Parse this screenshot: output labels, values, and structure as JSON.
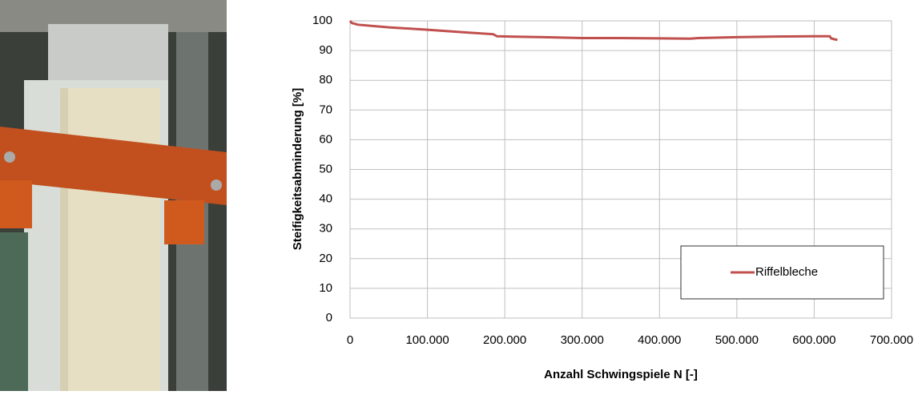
{
  "chart_data": {
    "type": "line",
    "x_label": "Anzahl Schwingspiele N [-]",
    "y_label": "Steifigkeitsabminderung [%]",
    "x": [
      0,
      2000,
      10000,
      50000,
      100000,
      150000,
      185000,
      190000,
      250000,
      300000,
      350000,
      400000,
      440000,
      450000,
      500000,
      550000,
      600000,
      620000,
      622000,
      626000,
      630000
    ],
    "series": [
      {
        "name": "Riffelbleche",
        "color": "#c0504d",
        "values": [
          100,
          99.3,
          98.7,
          97.8,
          97,
          96.1,
          95.5,
          94.8,
          94.5,
          94.2,
          94.2,
          94.1,
          94,
          94.2,
          94.5,
          94.7,
          94.8,
          94.8,
          94.1,
          93.8,
          93.6
        ]
      }
    ],
    "xlim": [
      0,
      700000
    ],
    "xticks": [
      0,
      {
        "value": 100000,
        "label": "100.000"
      },
      {
        "value": 200000,
        "label": "200.000"
      },
      {
        "value": 300000,
        "label": "300.000"
      },
      {
        "value": 400000,
        "label": "400.000"
      },
      {
        "value": 500000,
        "label": "500.000"
      },
      {
        "value": 600000,
        "label": "600.000"
      },
      {
        "value": 700000,
        "label": "700.000"
      }
    ],
    "ylim": [
      0,
      100
    ],
    "yticks": [
      0,
      10,
      20,
      30,
      40,
      50,
      60,
      70,
      80,
      90,
      100
    ],
    "grid": true,
    "legend_position": "lower right"
  }
}
